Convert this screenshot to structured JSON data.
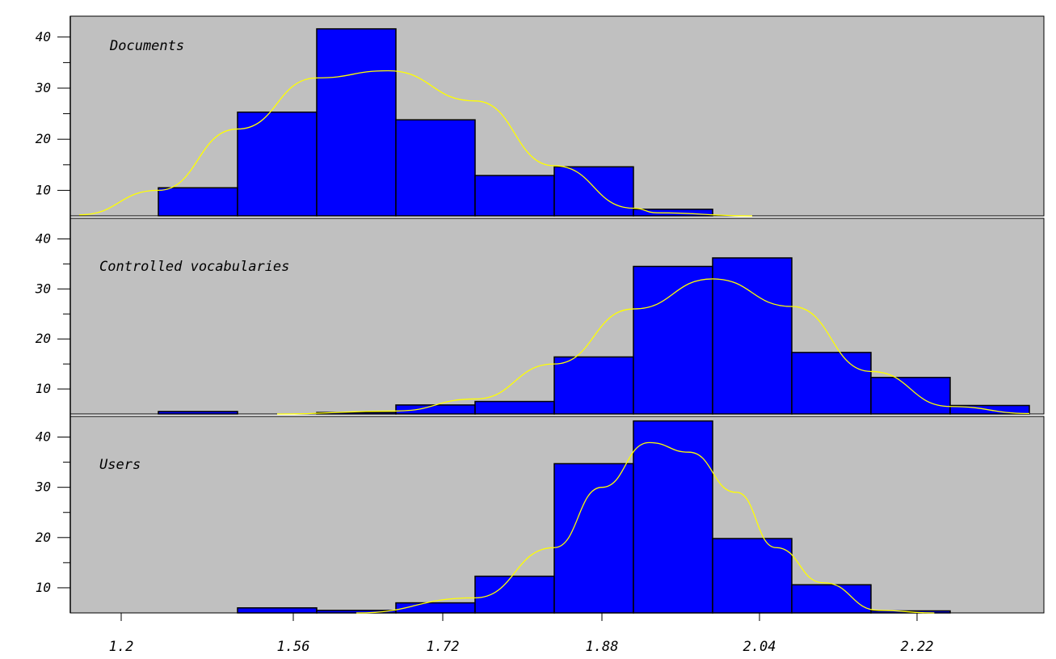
{
  "chart_data": {
    "type": "bar",
    "x_tick_labels": [
      "1.2",
      "1.56",
      "1.72",
      "1.88",
      "2.04",
      "2.22"
    ],
    "y_tick_labels": [
      "10",
      "20",
      "30",
      "40"
    ],
    "ylim": [
      5,
      42.5
    ],
    "panels": [
      {
        "label": "Documents",
        "bars": [
          {
            "index": 1,
            "value": 10.5
          },
          {
            "index": 2,
            "value": 25.3
          },
          {
            "index": 3,
            "value": 41.6
          },
          {
            "index": 4,
            "value": 23.8
          },
          {
            "index": 5,
            "value": 12.9
          },
          {
            "index": 6,
            "value": 14.6
          },
          {
            "index": 7,
            "value": 6.3
          }
        ],
        "curve": [
          [
            0,
            5.2
          ],
          [
            1,
            10.0
          ],
          [
            2,
            22.0
          ],
          [
            3,
            32.0
          ],
          [
            3.9,
            33.4
          ],
          [
            5,
            27.5
          ],
          [
            6,
            14.8
          ],
          [
            7,
            6.5
          ],
          [
            7.3,
            5.6
          ],
          [
            8.5,
            5.0
          ]
        ]
      },
      {
        "label": "Controlled vocabularies",
        "bars": [
          {
            "index": 1,
            "value": 5.5
          },
          {
            "index": 3,
            "value": 5.3
          },
          {
            "index": 4,
            "value": 6.8
          },
          {
            "index": 5,
            "value": 7.5
          },
          {
            "index": 6,
            "value": 16.4
          },
          {
            "index": 7,
            "value": 34.5
          },
          {
            "index": 8,
            "value": 36.2
          },
          {
            "index": 9,
            "value": 17.3
          },
          {
            "index": 10,
            "value": 12.3
          },
          {
            "index": 11,
            "value": 6.7
          }
        ],
        "curve": [
          [
            2.5,
            5.0
          ],
          [
            4,
            5.6
          ],
          [
            5,
            8.0
          ],
          [
            6,
            15.0
          ],
          [
            7,
            26.0
          ],
          [
            8,
            32.0
          ],
          [
            9,
            26.5
          ],
          [
            10,
            13.5
          ],
          [
            11,
            6.5
          ],
          [
            12,
            5.1
          ]
        ]
      },
      {
        "label": "Users",
        "bars": [
          {
            "index": 2,
            "value": 6.0
          },
          {
            "index": 3,
            "value": 5.5
          },
          {
            "index": 4,
            "value": 7.0
          },
          {
            "index": 5,
            "value": 12.3
          },
          {
            "index": 6,
            "value": 34.7
          },
          {
            "index": 7,
            "value": 43.2
          },
          {
            "index": 8,
            "value": 19.8
          },
          {
            "index": 9,
            "value": 10.6
          },
          {
            "index": 10,
            "value": 5.4
          }
        ],
        "curve": [
          [
            3.5,
            5.0
          ],
          [
            5,
            8.0
          ],
          [
            6,
            18.0
          ],
          [
            6.6,
            30.0
          ],
          [
            7.2,
            38.9
          ],
          [
            7.7,
            37.0
          ],
          [
            8.3,
            29.0
          ],
          [
            8.8,
            18.0
          ],
          [
            9.4,
            11.0
          ],
          [
            10.1,
            5.5
          ],
          [
            10.8,
            5.0
          ]
        ]
      }
    ]
  }
}
